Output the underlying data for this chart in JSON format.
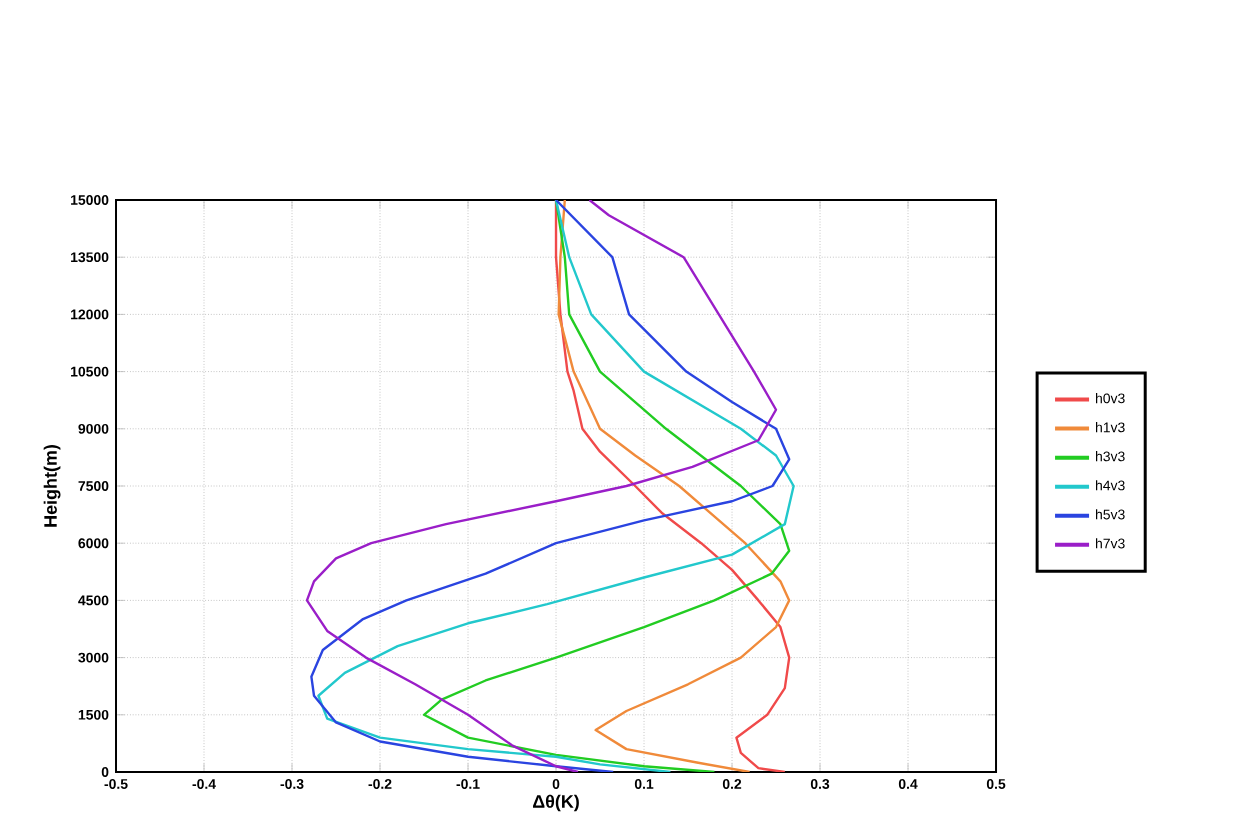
{
  "chart_data": {
    "type": "line",
    "xlabel": "Δθ(K)",
    "ylabel": "Height(m)",
    "xlim": [
      -0.5,
      0.5
    ],
    "ylim": [
      0,
      15000
    ],
    "xticks": [
      -0.5,
      -0.4,
      -0.3,
      -0.2,
      -0.1,
      0,
      0.1,
      0.2,
      0.3,
      0.4,
      0.5
    ],
    "yticks": [
      0,
      1500,
      3000,
      4500,
      6000,
      7500,
      9000,
      10500,
      12000,
      13500,
      15000
    ],
    "grid": true,
    "legend": "right",
    "line_style": "solid",
    "marker": "none",
    "series": [
      {
        "name": "h0v3",
        "color": "#f04a4a",
        "x": [
          0.26,
          0.23,
          0.21,
          0.205,
          0.24,
          0.26,
          0.265,
          0.255,
          0.23,
          0.2,
          0.165,
          0.12,
          0.09,
          0.05,
          0.03,
          0.02,
          0.013,
          0.005,
          0,
          0
        ],
        "values": [
          0,
          100,
          500,
          900,
          1500,
          2200,
          3000,
          3800,
          4500,
          5300,
          6000,
          6800,
          7500,
          8400,
          9000,
          10000,
          10500,
          12000,
          13500,
          15000
        ]
      },
      {
        "name": "h1v3",
        "color": "#f08a3a",
        "x": [
          0.22,
          0.16,
          0.08,
          0.045,
          0.08,
          0.15,
          0.21,
          0.25,
          0.265,
          0.255,
          0.215,
          0.14,
          0.09,
          0.05,
          0.02,
          0.003,
          0.005,
          0.01
        ],
        "values": [
          0,
          250,
          600,
          1100,
          1600,
          2300,
          3000,
          3800,
          4500,
          5000,
          6000,
          7500,
          8300,
          9000,
          10500,
          12000,
          13500,
          15000
        ]
      },
      {
        "name": "h3v3",
        "color": "#22cc22",
        "x": [
          0.18,
          0.1,
          0,
          -0.1,
          -0.15,
          -0.13,
          -0.08,
          0,
          0.1,
          0.18,
          0.245,
          0.265,
          0.255,
          0.21,
          0.17,
          0.125,
          0.05,
          0.015,
          0.01,
          0
        ],
        "values": [
          0,
          150,
          450,
          900,
          1500,
          1900,
          2400,
          3000,
          3800,
          4500,
          5200,
          5800,
          6500,
          7500,
          8200,
          9000,
          10500,
          12000,
          13500,
          15000
        ]
      },
      {
        "name": "h4v3",
        "color": "#22c8cc",
        "x": [
          0.13,
          0.05,
          0,
          -0.1,
          -0.2,
          -0.26,
          -0.27,
          -0.24,
          -0.18,
          -0.1,
          -0.01,
          0.1,
          0.2,
          0.26,
          0.27,
          0.25,
          0.21,
          0.1,
          0.04,
          0.015,
          0
        ],
        "values": [
          0,
          200,
          400,
          600,
          900,
          1400,
          2000,
          2600,
          3300,
          3900,
          4400,
          5100,
          5700,
          6500,
          7500,
          8300,
          9000,
          10500,
          12000,
          13500,
          15000
        ]
      },
      {
        "name": "h5v3",
        "color": "#2a44e0",
        "x": [
          0.065,
          0,
          -0.1,
          -0.2,
          -0.25,
          -0.275,
          -0.278,
          -0.265,
          -0.22,
          -0.17,
          -0.08,
          0,
          0.1,
          0.2,
          0.246,
          0.265,
          0.25,
          0.2,
          0.148,
          0.083,
          0.064,
          0
        ],
        "values": [
          0,
          150,
          400,
          800,
          1300,
          2000,
          2500,
          3200,
          4000,
          4500,
          5200,
          6000,
          6600,
          7100,
          7500,
          8200,
          9000,
          9700,
          10500,
          12000,
          13500,
          15000
        ]
      },
      {
        "name": "h7v3",
        "color": "#9a1ec8",
        "x": [
          0.025,
          0,
          -0.05,
          -0.1,
          -0.16,
          -0.216,
          -0.26,
          -0.283,
          -0.275,
          -0.25,
          -0.21,
          -0.125,
          0,
          0.08,
          0.155,
          0.23,
          0.25,
          0.225,
          0.185,
          0.145,
          0.06,
          0.038
        ],
        "values": [
          0,
          150,
          700,
          1500,
          2300,
          3000,
          3700,
          4500,
          5000,
          5600,
          6000,
          6500,
          7100,
          7500,
          8000,
          8700,
          9500,
          10500,
          12000,
          13500,
          14600,
          15000
        ]
      }
    ]
  }
}
